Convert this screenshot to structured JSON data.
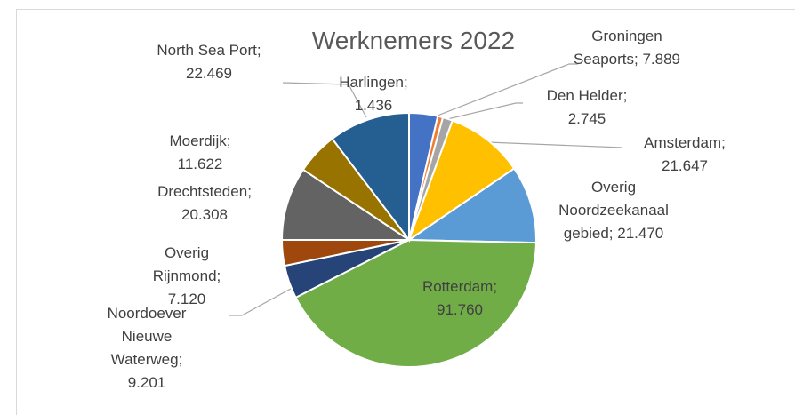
{
  "chart_data": {
    "type": "pie",
    "title": "Werknemers 2022",
    "categories": [
      "Groningen Seaports",
      "Harlingen",
      "Den Helder",
      "Amsterdam",
      "Overig Noordzeekanaal gebied",
      "Rotterdam",
      "Noordoever Nieuwe Waterweg",
      "Overig Rijnmond",
      "Drechtsteden",
      "Moerdijk",
      "North Sea Port"
    ],
    "values": [
      7889,
      1436,
      2745,
      21647,
      21470,
      91760,
      9201,
      7120,
      20308,
      11622,
      22469
    ],
    "value_labels": [
      "7.889",
      "1.436",
      "2.745",
      "21.647",
      "21.470",
      "91.760",
      "9.201",
      "7.120",
      "20.308",
      "11.622",
      "22.469"
    ],
    "label_separator": "; ",
    "colors": [
      "#4472c4",
      "#ed7d31",
      "#a5a5a5",
      "#ffc000",
      "#5b9bd5",
      "#70ad47",
      "#264478",
      "#9e480e",
      "#636363",
      "#997300",
      "#255e91"
    ]
  }
}
